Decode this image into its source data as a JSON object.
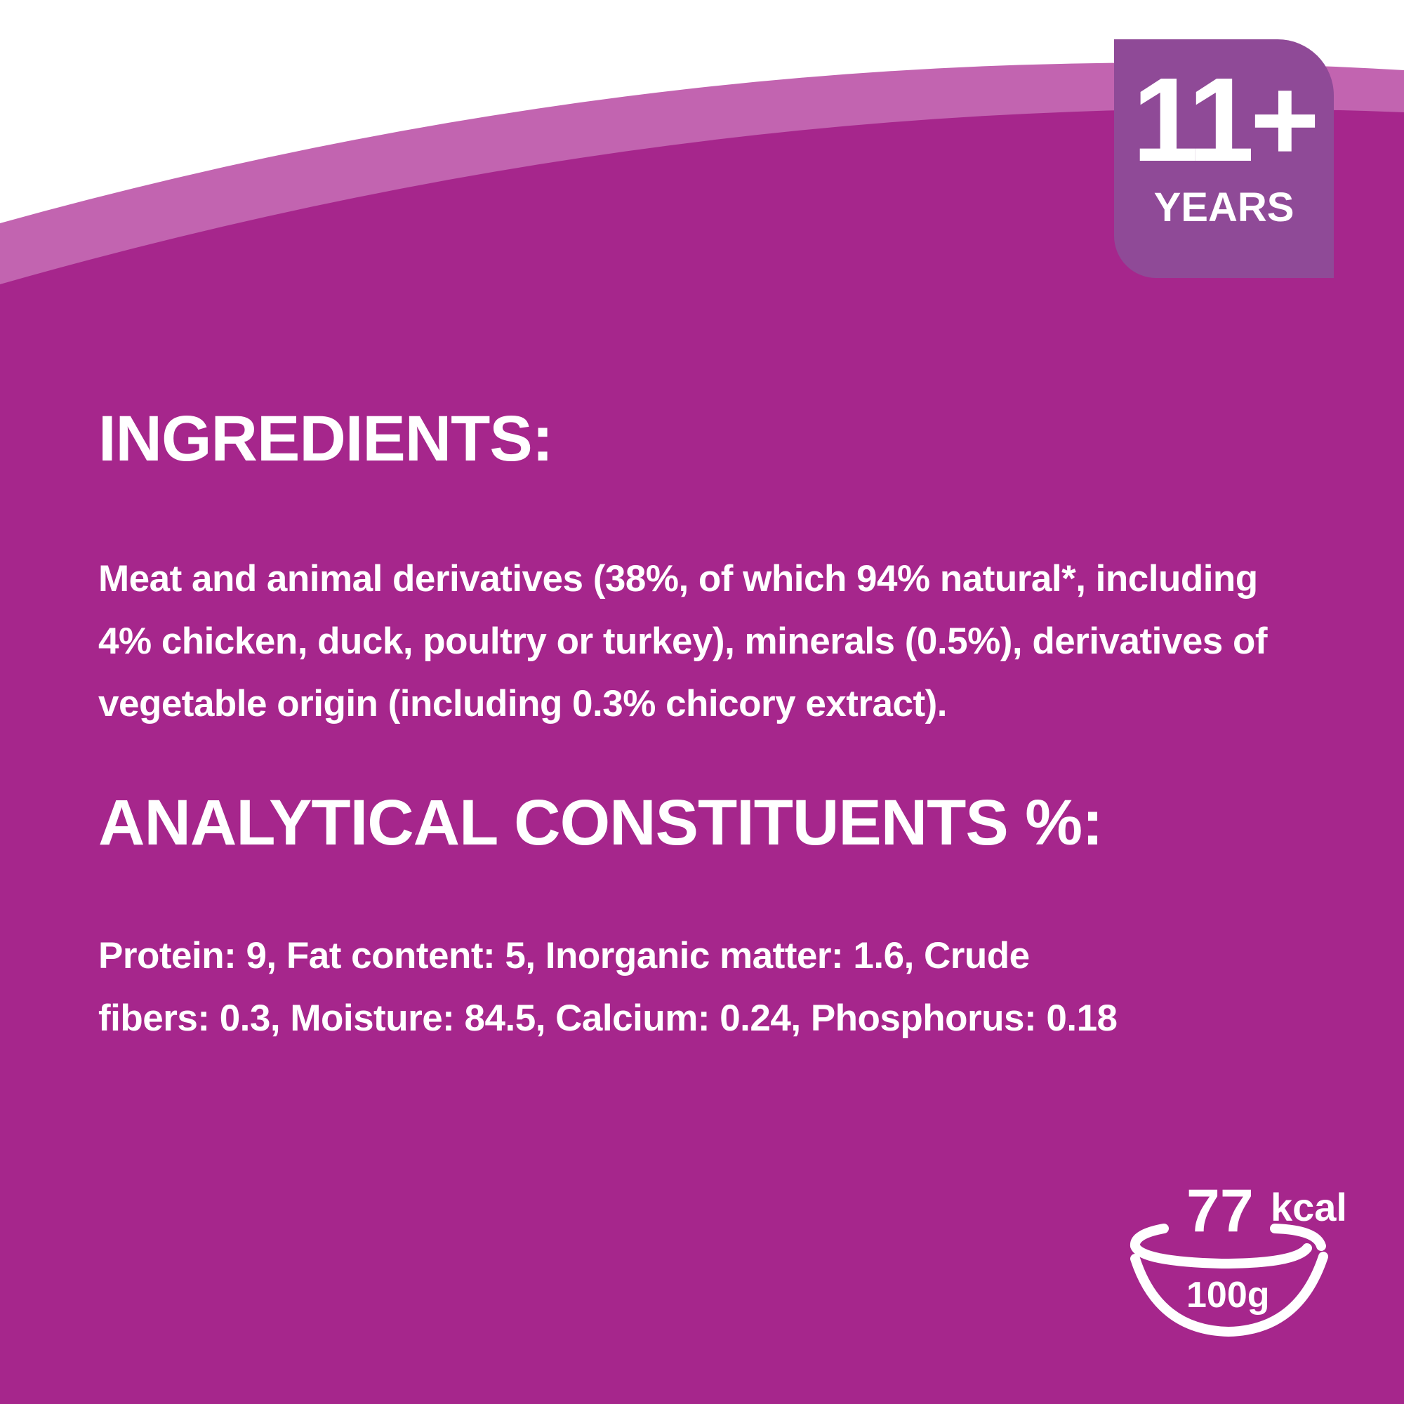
{
  "colors": {
    "background": "#a6268c",
    "band": "#c264b0",
    "badge": "#8f4a97",
    "text": "#ffffff"
  },
  "badge": {
    "age": "11+",
    "unit": "YEARS"
  },
  "ingredients": {
    "heading": "INGREDIENTS:",
    "text": "Meat and animal derivatives (38%, of which 94% natural*, including 4% chicken, duck, poultry or turkey), minerals (0.5%), derivatives of vegetable origin (including 0.3% chicory extract)."
  },
  "analytical": {
    "heading": "ANALYTICAL CONSTITUENTS %:",
    "text": "Protein: 9, Fat content: 5, Inorganic matter: 1.6, Crude fibers: 0.3, Moisture: 84.5, Calcium: 0.24, Phosphorus: 0.18"
  },
  "energy": {
    "value": "77",
    "unit": "kcal",
    "portion": "100g",
    "icon": "bowl-icon"
  }
}
